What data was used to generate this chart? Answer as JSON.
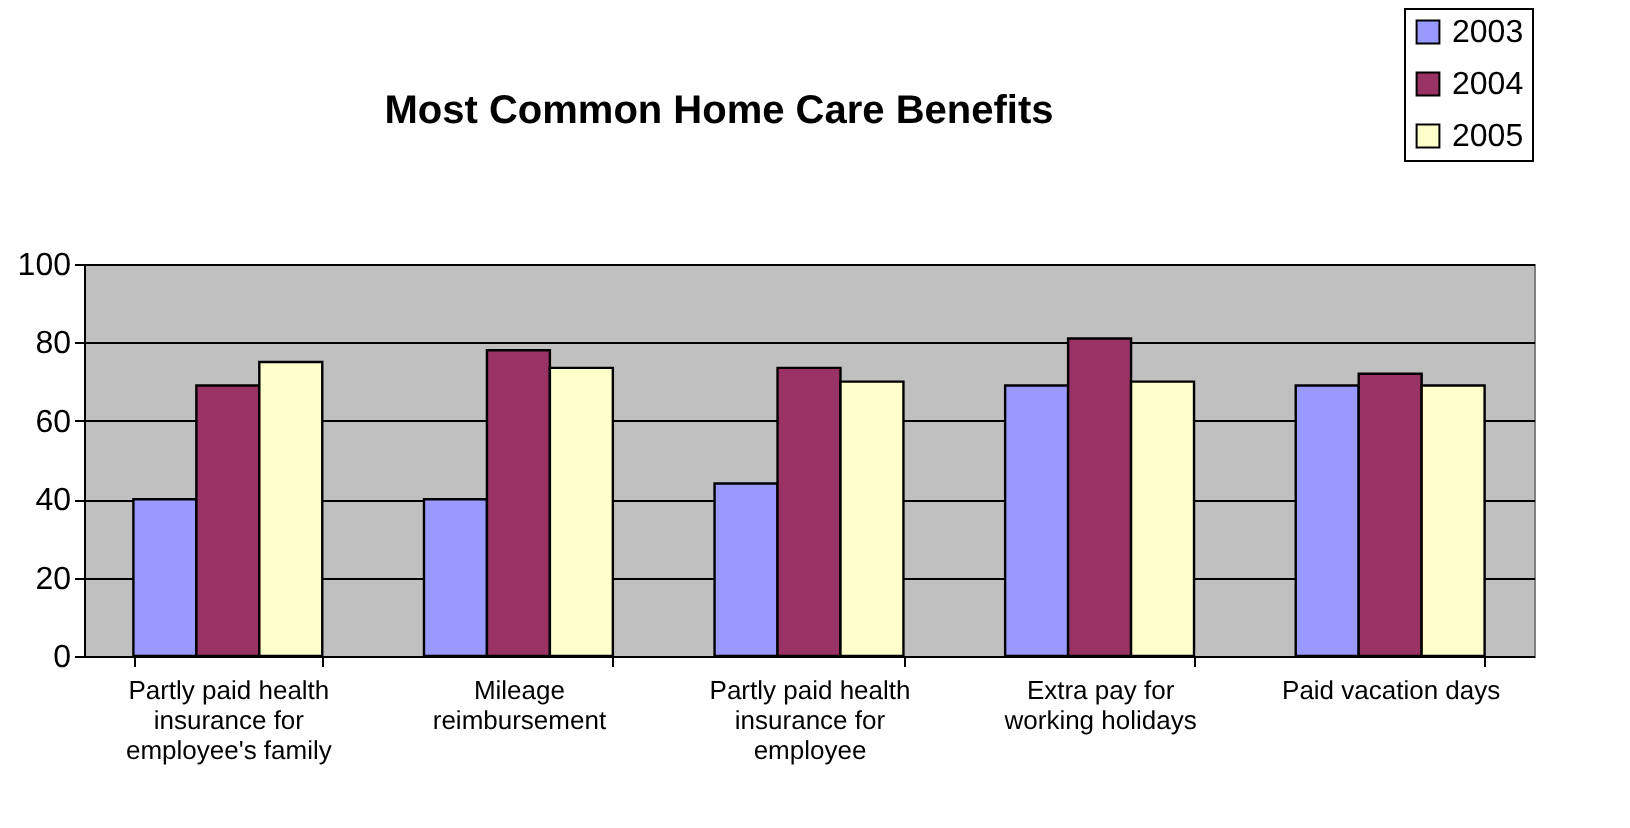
{
  "chart_data": {
    "type": "bar",
    "title": "Most Common Home Care Benefits",
    "categories": [
      "Partly paid health insurance for employee's family",
      "Mileage reimbursement",
      "Partly paid health insurance for employee",
      "Extra pay for working holidays",
      "Paid vacation days"
    ],
    "series": [
      {
        "name": "2003",
        "color": "#9999ff",
        "values": [
          40,
          40,
          44,
          69,
          69
        ]
      },
      {
        "name": "2004",
        "color": "#993366",
        "values": [
          69,
          78,
          73.5,
          81,
          72
        ]
      },
      {
        "name": "2005",
        "color": "#ffffcc",
        "values": [
          75,
          73.5,
          70,
          70,
          69
        ]
      }
    ],
    "ylim": [
      0,
      100
    ],
    "yticks": [
      0,
      20,
      40,
      60,
      80,
      100
    ],
    "grid": "y",
    "legend": "top right"
  }
}
